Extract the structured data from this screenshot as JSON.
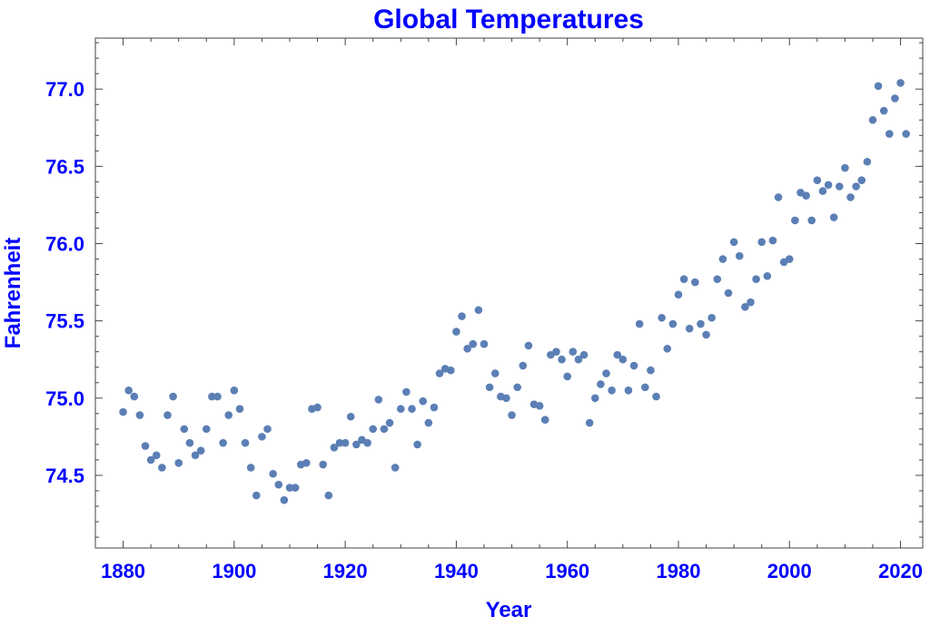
{
  "colors": {
    "text": "#0000ff",
    "point": "#5b7fb5",
    "frame": "#444444"
  },
  "chart_data": {
    "type": "scatter",
    "title": "Global Temperatures",
    "xlabel": "Year",
    "ylabel": "Fahrenheit",
    "xlim": [
      1875,
      2024
    ],
    "ylim": [
      74.03,
      77.33
    ],
    "x_ticks": [
      1880,
      1900,
      1920,
      1940,
      1960,
      1980,
      2000,
      2020
    ],
    "x_tick_labels": [
      "1880",
      "1900",
      "1920",
      "1940",
      "1960",
      "1980",
      "2000",
      "2020"
    ],
    "y_ticks": [
      74.5,
      75.0,
      75.5,
      76.0,
      76.5,
      77.0
    ],
    "y_tick_labels": [
      "74.5",
      "75.0",
      "75.5",
      "76.0",
      "76.5",
      "77.0"
    ],
    "grid": false,
    "series": [
      {
        "name": "Global Temperatures",
        "x": [
          1880,
          1881,
          1882,
          1883,
          1884,
          1885,
          1886,
          1887,
          1888,
          1889,
          1890,
          1891,
          1892,
          1893,
          1894,
          1895,
          1896,
          1897,
          1898,
          1899,
          1900,
          1901,
          1902,
          1903,
          1904,
          1905,
          1906,
          1907,
          1908,
          1909,
          1910,
          1911,
          1912,
          1913,
          1914,
          1915,
          1916,
          1917,
          1918,
          1919,
          1920,
          1921,
          1922,
          1923,
          1924,
          1925,
          1926,
          1927,
          1928,
          1929,
          1930,
          1931,
          1932,
          1933,
          1934,
          1935,
          1936,
          1937,
          1938,
          1939,
          1940,
          1941,
          1942,
          1943,
          1944,
          1945,
          1946,
          1947,
          1948,
          1949,
          1950,
          1951,
          1952,
          1953,
          1954,
          1955,
          1956,
          1957,
          1958,
          1959,
          1960,
          1961,
          1962,
          1963,
          1964,
          1965,
          1966,
          1967,
          1968,
          1969,
          1970,
          1971,
          1972,
          1973,
          1974,
          1975,
          1976,
          1977,
          1978,
          1979,
          1980,
          1981,
          1982,
          1983,
          1984,
          1985,
          1986,
          1987,
          1988,
          1989,
          1990,
          1991,
          1992,
          1993,
          1994,
          1995,
          1996,
          1997,
          1998,
          1999,
          2000,
          2001,
          2002,
          2003,
          2004,
          2005,
          2006,
          2007,
          2008,
          2009,
          2010,
          2011,
          2012,
          2013,
          2014,
          2015,
          2016,
          2017,
          2018,
          2019,
          2020,
          2021
        ],
        "y": [
          74.91,
          75.05,
          75.01,
          74.89,
          74.69,
          74.6,
          74.63,
          74.55,
          74.89,
          75.01,
          74.58,
          74.8,
          74.71,
          74.63,
          74.66,
          74.8,
          75.01,
          75.01,
          74.71,
          74.89,
          75.05,
          74.93,
          74.71,
          74.55,
          74.37,
          74.75,
          74.8,
          74.51,
          74.44,
          74.34,
          74.42,
          74.42,
          74.57,
          74.58,
          74.93,
          74.94,
          74.57,
          74.37,
          74.68,
          74.71,
          74.71,
          74.88,
          74.7,
          74.73,
          74.71,
          74.8,
          74.99,
          74.8,
          74.84,
          74.55,
          74.93,
          75.04,
          74.93,
          74.7,
          74.98,
          74.84,
          74.94,
          75.16,
          75.19,
          75.18,
          75.43,
          75.53,
          75.32,
          75.35,
          75.57,
          75.35,
          75.07,
          75.16,
          75.01,
          75.0,
          74.89,
          75.07,
          75.21,
          75.34,
          74.96,
          74.95,
          74.86,
          75.28,
          75.3,
          75.25,
          75.14,
          75.3,
          75.25,
          75.28,
          74.84,
          75.0,
          75.09,
          75.16,
          75.05,
          75.28,
          75.25,
          75.05,
          75.21,
          75.48,
          75.07,
          75.18,
          75.01,
          75.52,
          75.32,
          75.48,
          75.67,
          75.77,
          75.45,
          75.75,
          75.48,
          75.41,
          75.52,
          75.77,
          75.9,
          75.68,
          76.01,
          75.92,
          75.59,
          75.62,
          75.77,
          76.01,
          75.79,
          76.02,
          76.3,
          75.88,
          75.9,
          76.15,
          76.33,
          76.31,
          76.15,
          76.41,
          76.34,
          76.38,
          76.17,
          76.37,
          76.49,
          76.3,
          76.37,
          76.41,
          76.53,
          76.8,
          77.02,
          76.86,
          76.71,
          76.94,
          77.04,
          76.71
        ]
      }
    ]
  }
}
